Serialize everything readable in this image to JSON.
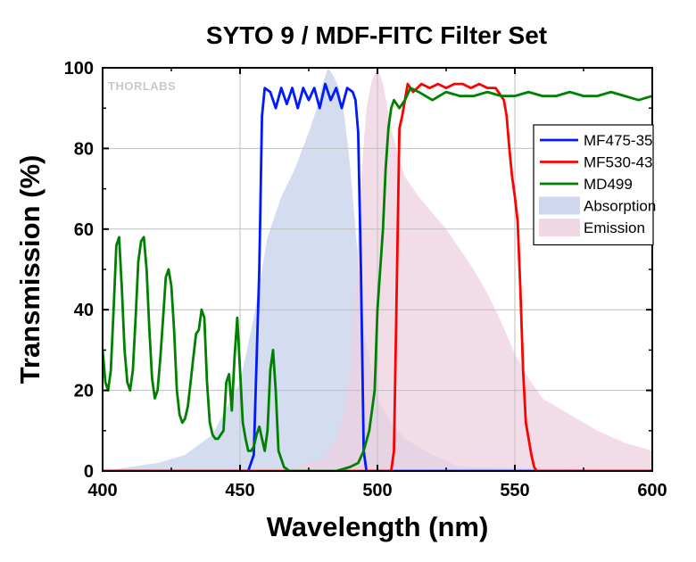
{
  "chart_data": {
    "type": "line",
    "title": "SYTO 9 / MDF-FITC Filter Set",
    "xlabel": "Wavelength (nm)",
    "ylabel": "Transmission (%)",
    "xlim": [
      400,
      600
    ],
    "ylim": [
      0,
      100
    ],
    "xticks": [
      400,
      450,
      500,
      550,
      600
    ],
    "yticks": [
      0,
      20,
      40,
      60,
      80,
      100
    ],
    "grid": true,
    "legend_position": "right",
    "watermark": "THORLABS",
    "series": [
      {
        "name": "MF475-35",
        "kind": "line",
        "color": "#0019ff",
        "x": [
          400,
          453,
          455,
          457,
          458,
          459,
          461,
          463,
          465,
          467,
          469,
          471,
          473,
          475,
          477,
          479,
          481,
          483,
          485,
          487,
          489,
          491,
          492,
          493,
          494,
          495,
          496,
          500,
          600
        ],
        "y": [
          0,
          0,
          4,
          50,
          88,
          95,
          94,
          90,
          95,
          91,
          95,
          90,
          95,
          92,
          95,
          90,
          96,
          92,
          95,
          90,
          95,
          94,
          92,
          84,
          50,
          5,
          0,
          0,
          0
        ]
      },
      {
        "name": "MF530-43",
        "kind": "line",
        "color": "#ff0000",
        "x": [
          400,
          505,
          506,
          507,
          508,
          509,
          510,
          511,
          513,
          516,
          519,
          522,
          525,
          528,
          531,
          534,
          537,
          540,
          543,
          546,
          547,
          548,
          549,
          550,
          551,
          552,
          553,
          554,
          555,
          556,
          557,
          558,
          560,
          600
        ],
        "y": [
          0,
          0,
          5,
          45,
          85,
          88,
          92,
          96,
          94,
          96,
          95,
          96,
          95,
          96,
          96,
          95,
          96,
          95,
          95,
          92,
          88,
          80,
          73,
          68,
          62,
          45,
          25,
          12,
          8,
          4,
          1,
          0,
          0,
          0
        ]
      },
      {
        "name": "MD499",
        "kind": "line",
        "color": "#008000",
        "x": [
          400,
          401,
          402,
          403,
          404,
          405,
          406,
          407,
          408,
          409,
          410,
          411,
          412,
          413,
          414,
          415,
          416,
          417,
          418,
          419,
          420,
          421,
          422,
          423,
          424,
          425,
          426,
          427,
          428,
          429,
          430,
          431,
          432,
          433,
          434,
          435,
          436,
          437,
          438,
          439,
          440,
          441,
          442,
          443,
          444,
          445,
          446,
          447,
          448,
          449,
          450,
          451,
          452,
          453,
          454,
          455,
          456,
          457,
          458,
          459,
          460,
          461,
          462,
          463,
          464,
          466,
          468,
          470,
          475,
          480,
          485,
          490,
          493,
          495,
          497,
          499,
          500,
          502,
          503,
          504,
          505,
          506,
          508,
          510,
          512,
          515,
          520,
          525,
          530,
          535,
          540,
          545,
          550,
          555,
          560,
          565,
          570,
          575,
          580,
          585,
          590,
          595,
          600
        ],
        "y": [
          30,
          22,
          20,
          25,
          40,
          56,
          58,
          45,
          30,
          22,
          20,
          25,
          38,
          52,
          57,
          58,
          50,
          35,
          23,
          18,
          20,
          28,
          38,
          48,
          50,
          46,
          35,
          20,
          14,
          12,
          13,
          16,
          22,
          28,
          34,
          35,
          40,
          38,
          22,
          12,
          9,
          8,
          8,
          9,
          10,
          22,
          24,
          15,
          28,
          38,
          25,
          12,
          8,
          5,
          5,
          6,
          9,
          11,
          8,
          5,
          10,
          25,
          30,
          20,
          5,
          1,
          0,
          0,
          0,
          0,
          0,
          1,
          2,
          5,
          10,
          20,
          40,
          60,
          75,
          85,
          90,
          92,
          90,
          92,
          95,
          94,
          92,
          94,
          93,
          93,
          94,
          93,
          93,
          94,
          93,
          93,
          94,
          93,
          93,
          94,
          93,
          92,
          93
        ]
      },
      {
        "name": "Absorption",
        "kind": "area",
        "color": "#c5d0ea",
        "x": [
          400,
          410,
          420,
          430,
          440,
          450,
          455,
          460,
          465,
          470,
          475,
          478,
          480,
          482,
          484,
          486,
          488,
          490,
          492,
          495,
          500,
          505,
          510,
          520,
          530,
          600
        ],
        "y": [
          0,
          1,
          2,
          4,
          9,
          22,
          38,
          58,
          68,
          75,
          84,
          90,
          96,
          100,
          98,
          95,
          88,
          76,
          60,
          35,
          18,
          12,
          8,
          4,
          1,
          0
        ]
      },
      {
        "name": "Emission",
        "kind": "area",
        "color": "#ecd0df",
        "x": [
          400,
          460,
          470,
          475,
          480,
          485,
          488,
          490,
          492,
          494,
          496,
          498,
          500,
          502,
          505,
          508,
          510,
          515,
          520,
          525,
          530,
          535,
          540,
          545,
          550,
          555,
          560,
          570,
          580,
          590,
          600
        ],
        "y": [
          0,
          0,
          1,
          2,
          3,
          8,
          15,
          25,
          45,
          72,
          90,
          97,
          100,
          96,
          85,
          77,
          73,
          68,
          64,
          60,
          55,
          50,
          44,
          37,
          29,
          23,
          18,
          14,
          10,
          7,
          5
        ]
      }
    ]
  }
}
